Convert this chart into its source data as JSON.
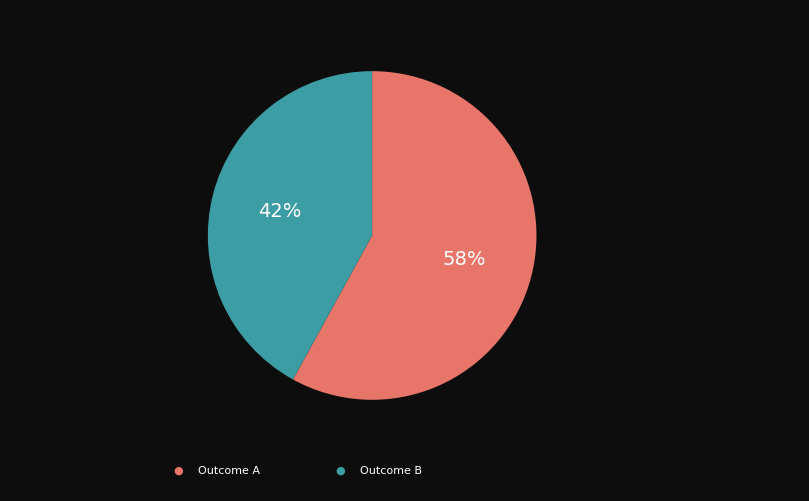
{
  "slices": [
    58,
    42
  ],
  "colors": [
    "#E8756A",
    "#3D9DA4"
  ],
  "labels": [
    "58%",
    "42%"
  ],
  "legend_labels": [
    "Outcome A",
    "Outcome B"
  ],
  "background_color": "#0d0d0d",
  "text_color": "#ffffff",
  "startangle": 90,
  "label_fontsize": 14,
  "figsize": [
    8.09,
    5.01
  ],
  "dpi": 100,
  "legend_dot_size": 8
}
